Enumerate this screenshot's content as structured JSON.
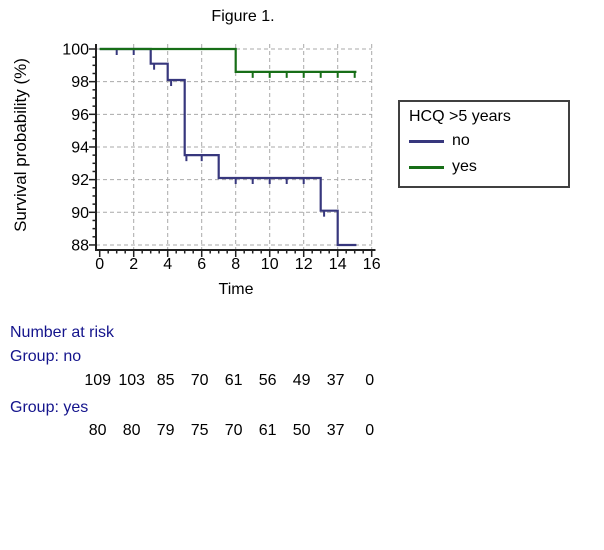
{
  "title": "Figure 1.",
  "chart_data": {
    "type": "line",
    "subtype": "kaplan-meier-step",
    "title": "Figure 1.",
    "xlabel": "Time",
    "ylabel": "Survival probability (%)",
    "xlim": [
      0,
      16
    ],
    "ylim": [
      88,
      100
    ],
    "xticks": [
      0,
      2,
      4,
      6,
      8,
      10,
      12,
      14,
      16
    ],
    "yticks": [
      88,
      90,
      92,
      94,
      96,
      98,
      100
    ],
    "grid": true,
    "legend_position": "right",
    "series": [
      {
        "name": "no",
        "color": "#37377d",
        "points": [
          [
            0,
            100
          ],
          [
            3,
            100
          ],
          [
            3,
            99.1
          ],
          [
            4,
            99.1
          ],
          [
            4,
            98.1
          ],
          [
            5,
            98.1
          ],
          [
            5,
            93.5
          ],
          [
            7,
            93.5
          ],
          [
            7,
            92.1
          ],
          [
            13,
            92.1
          ],
          [
            13,
            90.1
          ],
          [
            14,
            90.1
          ],
          [
            14,
            88
          ],
          [
            15.1,
            88
          ]
        ],
        "censors": [
          [
            1,
            100
          ],
          [
            2,
            100
          ],
          [
            3.2,
            99.1
          ],
          [
            4.2,
            98.1
          ],
          [
            5.1,
            93.5
          ],
          [
            6,
            93.5
          ],
          [
            8,
            92.1
          ],
          [
            9,
            92.1
          ],
          [
            10,
            92.1
          ],
          [
            11,
            92.1
          ],
          [
            12,
            92.1
          ],
          [
            13.2,
            90.1
          ]
        ]
      },
      {
        "name": "yes",
        "color": "#176e17",
        "points": [
          [
            0,
            100
          ],
          [
            8,
            100
          ],
          [
            8,
            98.6
          ],
          [
            15.1,
            98.6
          ]
        ],
        "censors": [
          [
            9,
            98.6
          ],
          [
            10,
            98.6
          ],
          [
            11,
            98.6
          ],
          [
            12,
            98.6
          ],
          [
            13,
            98.6
          ],
          [
            14,
            98.6
          ],
          [
            15,
            98.6
          ]
        ]
      }
    ]
  },
  "legend": {
    "title": "HCQ >5 years",
    "items": [
      {
        "label": "no",
        "color": "#37377d"
      },
      {
        "label": "yes",
        "color": "#176e17"
      }
    ]
  },
  "risk_table": {
    "heading": "Number at risk",
    "times": [
      0,
      2,
      4,
      6,
      8,
      10,
      12,
      14,
      16
    ],
    "label_color": "#14148c",
    "groups": [
      {
        "label": "Group: no",
        "counts": [
          109,
          103,
          85,
          70,
          61,
          56,
          49,
          37,
          0
        ]
      },
      {
        "label": "Group: yes",
        "counts": [
          80,
          80,
          79,
          75,
          70,
          61,
          50,
          37,
          0
        ]
      }
    ]
  },
  "colors": {
    "grid": "#a9a9a9",
    "axis": "#202020",
    "background": "#ffffff"
  }
}
